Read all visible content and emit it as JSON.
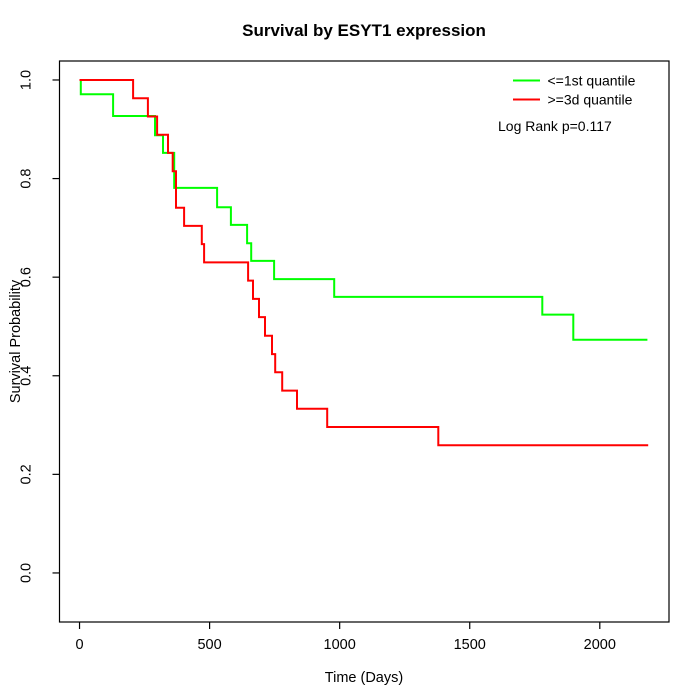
{
  "chart_data": {
    "type": "line",
    "subtype": "kaplan-meier-step",
    "title": "Survival by ESYT1 expression",
    "xlabel": "Time (Days)",
    "ylabel": "Survival Probability",
    "xlim": [
      -77,
      2266
    ],
    "ylim": [
      -0.0995,
      1.0385
    ],
    "grid": false,
    "x_ticks": [
      {
        "value": 0,
        "label": "0"
      },
      {
        "value": 500,
        "label": "500"
      },
      {
        "value": 1000,
        "label": "1000"
      },
      {
        "value": 1500,
        "label": "1500"
      },
      {
        "value": 2000,
        "label": "2000"
      }
    ],
    "y_ticks": [
      {
        "value": 0.0,
        "label": "0.0"
      },
      {
        "value": 0.2,
        "label": "0.2"
      },
      {
        "value": 0.4,
        "label": "0.4"
      },
      {
        "value": 0.6,
        "label": "0.6"
      },
      {
        "value": 0.8,
        "label": "0.8"
      },
      {
        "value": 1.0,
        "label": "1.0"
      }
    ],
    "legend": {
      "position": "top-right",
      "entries": [
        {
          "label": "<=1st quantile",
          "color": "#00ff00"
        },
        {
          "label": ">=3d quantile",
          "color": "#ff0000"
        }
      ]
    },
    "annotation": "Log Rank p=0.117",
    "colors": {
      "low_group": "#00ff00",
      "high_group": "#ff0000",
      "axis": "#000000"
    },
    "series": [
      {
        "name": "<=1st quantile",
        "color": "#00ff00",
        "points_time_survival": [
          [
            0,
            1.0
          ],
          [
            5,
            0.971
          ],
          [
            129,
            0.927
          ],
          [
            290,
            0.888
          ],
          [
            321,
            0.852
          ],
          [
            364,
            0.781
          ],
          [
            529,
            0.742
          ],
          [
            582,
            0.706
          ],
          [
            644,
            0.669
          ],
          [
            660,
            0.633
          ],
          [
            748,
            0.596
          ],
          [
            979,
            0.56
          ],
          [
            1779,
            0.524
          ],
          [
            1898,
            0.473
          ],
          [
            2183,
            0.473
          ]
        ]
      },
      {
        "name": ">=3d quantile",
        "color": "#ff0000",
        "points_time_survival": [
          [
            0,
            1.0
          ],
          [
            206,
            0.963
          ],
          [
            263,
            0.926
          ],
          [
            298,
            0.889
          ],
          [
            340,
            0.852
          ],
          [
            358,
            0.815
          ],
          [
            371,
            0.741
          ],
          [
            402,
            0.704
          ],
          [
            470,
            0.667
          ],
          [
            479,
            0.63
          ],
          [
            648,
            0.593
          ],
          [
            667,
            0.556
          ],
          [
            690,
            0.519
          ],
          [
            713,
            0.481
          ],
          [
            740,
            0.444
          ],
          [
            752,
            0.407
          ],
          [
            779,
            0.37
          ],
          [
            836,
            0.333
          ],
          [
            952,
            0.296
          ],
          [
            1379,
            0.259
          ],
          [
            2186,
            0.259
          ]
        ]
      }
    ]
  }
}
